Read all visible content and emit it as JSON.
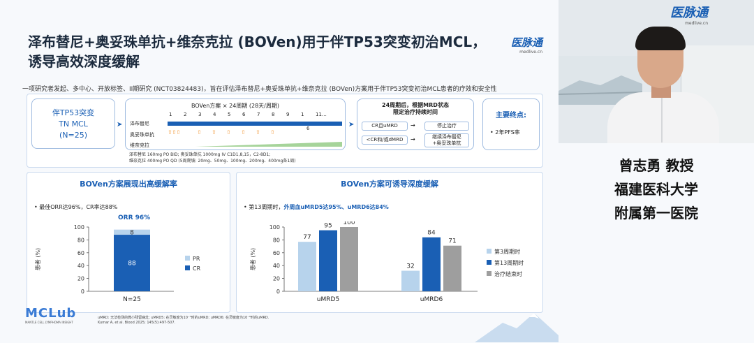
{
  "slide": {
    "title_line1": "泽布替尼+奥妥珠单抗+维奈克拉 (BOVen)用于伴TP53突变初治MCL，",
    "title_line2": "诱导高效深度缓解",
    "logo_main": "医脉通",
    "logo_sub": "medlive.cn",
    "subtitle": "一项研究者发起、多中心、开放标签、II期研究 (NCT03824483)，旨在评估泽布替尼+奥妥珠单抗+维奈克拉 (BOVen)方案用于伴TP53突变初治MCL患者的疗效和安全性",
    "design": {
      "population_lines": [
        "伴TP53突变",
        "TN MCL",
        "(N=25)"
      ],
      "regimen_title": "BOVen方案 × 24周期 (28天/周期)",
      "cycle_numbers": [
        "1",
        "2",
        "3",
        "4",
        "5",
        "6",
        "7",
        "8",
        "9",
        "1",
        "11…"
      ],
      "drugs": [
        "泽布替尼",
        "奥妥珠单抗",
        "维奈克拉"
      ],
      "marker_6": "6",
      "dosing_line1": "泽布替尼 160mg PO BID; 奥妥珠单抗 1000mg IV C1D1,8,15，C2-8D1;",
      "dosing_line2": "维奈克拉 400mg PO QD (5周爬坡: 20mg、50mg、100mg、200mg、400mg各1周)",
      "mrd_title_line1": "24周期后，根据MRD状态",
      "mrd_title_line2": "限定治疗持续时间",
      "mrd_rows": [
        {
          "condition": "CR且uMRD",
          "action": "停止治疗"
        },
        {
          "condition": "<CR和/或dMRD",
          "action": "继续泽布替尼\n+奥妥珠单抗"
        }
      ],
      "endpoint_title": "主要终点:",
      "endpoint_item": "• 2年PFS率"
    },
    "left_chart": {
      "heading": "BOVen方案展现出高缓解率",
      "bullet": "•  最佳ORR达96%，CR率达88%",
      "orr_label": "ORR 96%",
      "ylabel": "患者 (%)",
      "legend": [
        "PR",
        "CR"
      ]
    },
    "right_chart": {
      "heading": "BOVen方案可诱导深度缓解",
      "bullet_prefix": "•  第13周期时，",
      "bullet_highlight": "外周血uMRD5达95%、uMRD6达84%",
      "ylabel": "患者 (%)"
    },
    "footnote_line1": "uMRD: 无法检测的微小残留病灶; uMRD5: 在灵敏度为10⁻⁵时的uMRD; uMRD6: 在灵敏度为10⁻⁶时的uMRD.",
    "footnote_line2": "Kumar A, et al. Blood 2025; 145(5):497-507.",
    "brand_main": "MCLub",
    "brand_sub": "MANTLE CELL LYMPHOMA INSIGHT",
    "colors": {
      "dark_blue": "#1a5fb4",
      "light_blue": "#b7d3ec",
      "gray": "#9e9e9e",
      "orange": "#f29a3a",
      "green": "#a6d49a"
    }
  },
  "video": {
    "logo_main": "医脉通",
    "logo_sub": "medlive.cn",
    "speaker_name": "曾志勇 教授",
    "affiliation_line1": "福建医科大学",
    "affiliation_line2": "附属第一医院"
  },
  "chart_data": [
    {
      "type": "bar",
      "stacked": true,
      "categories": [
        "N=25"
      ],
      "series": [
        {
          "name": "CR",
          "values": [
            88
          ],
          "color": "#1a5fb4"
        },
        {
          "name": "PR",
          "values": [
            8
          ],
          "color": "#b7d3ec"
        }
      ],
      "ylabel": "患者 (%)",
      "ylim": [
        0,
        100
      ],
      "yticks": [
        0,
        20,
        40,
        60,
        80,
        100
      ],
      "legend": "right"
    },
    {
      "type": "bar",
      "categories": [
        "uMRD5",
        "uMRD6"
      ],
      "series": [
        {
          "name": "第3周期时",
          "values": [
            77,
            32
          ],
          "color": "#b7d3ec"
        },
        {
          "name": "第13周期时",
          "values": [
            95,
            84
          ],
          "color": "#1a5fb4"
        },
        {
          "name": "治疗结束时",
          "values": [
            100,
            71
          ],
          "color": "#9e9e9e"
        }
      ],
      "ylabel": "患者 (%)",
      "ylim": [
        0,
        100
      ],
      "yticks": [
        0,
        20,
        40,
        60,
        80,
        100
      ],
      "legend": "right"
    }
  ]
}
